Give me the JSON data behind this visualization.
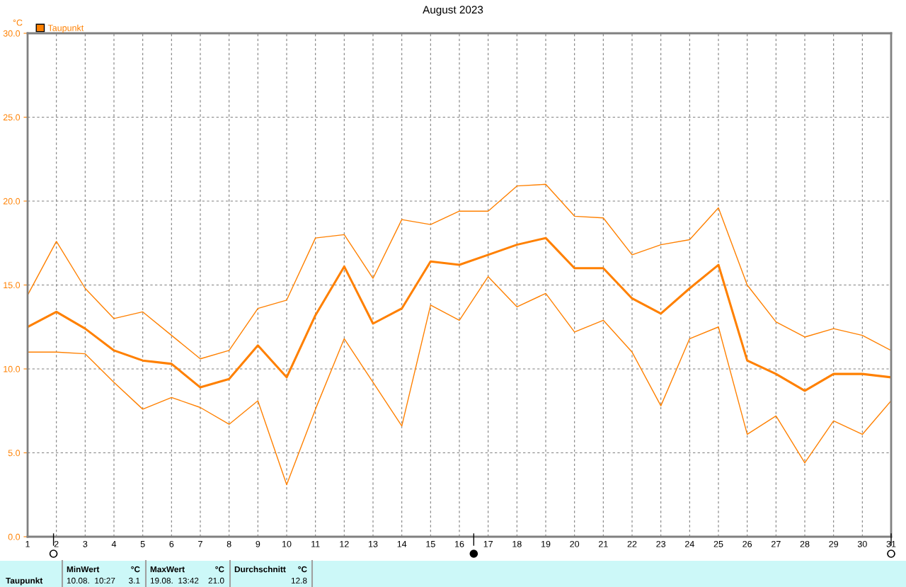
{
  "chart_data": {
    "type": "line",
    "title": "August 2023",
    "ylabel": "°C",
    "x": [
      1,
      2,
      3,
      4,
      5,
      6,
      7,
      8,
      9,
      10,
      11,
      12,
      13,
      14,
      15,
      16,
      17,
      18,
      19,
      20,
      21,
      22,
      23,
      24,
      25,
      26,
      27,
      28,
      29,
      30,
      31
    ],
    "series": [
      {
        "color": "#ff8000",
        "values": [
          14.4,
          17.6,
          14.8,
          13.0,
          13.4,
          12.0,
          10.6,
          11.1,
          13.6,
          14.1,
          17.8,
          18.0,
          15.4,
          18.9,
          18.6,
          19.4,
          19.4,
          20.9,
          21.0,
          19.1,
          19.0,
          16.8,
          17.4,
          17.7,
          19.6,
          15.0,
          12.8,
          11.9,
          12.4,
          12.0,
          11.1
        ]
      },
      {
        "name": "Taupunkt",
        "color": "#ff8000",
        "values": [
          12.5,
          13.4,
          12.4,
          11.1,
          10.5,
          10.3,
          8.9,
          9.4,
          11.4,
          9.5,
          13.2,
          16.1,
          12.7,
          13.6,
          16.4,
          16.2,
          16.8,
          17.4,
          17.8,
          16.0,
          16.0,
          14.2,
          13.3,
          14.8,
          16.2,
          10.5,
          9.7,
          8.7,
          9.7,
          9.7,
          9.5
        ]
      },
      {
        "color": "#ff8000",
        "values": [
          11.0,
          11.0,
          10.9,
          9.2,
          7.6,
          8.3,
          7.7,
          6.7,
          8.1,
          3.1,
          7.6,
          11.8,
          9.2,
          6.6,
          13.8,
          12.9,
          15.5,
          13.7,
          14.5,
          12.2,
          12.9,
          11.0,
          7.8,
          11.8,
          12.5,
          6.1,
          7.2,
          4.4,
          6.9,
          6.1,
          8.1
        ]
      }
    ],
    "xlim": [
      1,
      31
    ],
    "xticks": [
      1,
      2,
      3,
      4,
      5,
      6,
      7,
      8,
      9,
      10,
      11,
      12,
      13,
      14,
      15,
      16,
      17,
      18,
      19,
      20,
      21,
      22,
      23,
      24,
      25,
      26,
      27,
      28,
      29,
      30,
      31
    ],
    "ylim": [
      0,
      30
    ],
    "yticks": [
      {
        "value": 0,
        "label": "0.0"
      },
      {
        "value": 5,
        "label": "5.0"
      },
      {
        "value": 10,
        "label": "10.0"
      },
      {
        "value": 15,
        "label": "15.0"
      },
      {
        "value": 20,
        "label": "20.0"
      },
      {
        "value": 25,
        "label": "25.0"
      },
      {
        "value": 30,
        "label": "30.0"
      }
    ],
    "grid": true,
    "legend": "top left",
    "annotations": [
      "Taupunkt",
      "MinWert",
      "°C",
      "10.08.  10:27",
      "3.1",
      "MaxWert",
      "°C",
      "19.08.  13:42",
      "21.0",
      "Durchschnitt",
      "°C",
      "12.8"
    ]
  }
}
